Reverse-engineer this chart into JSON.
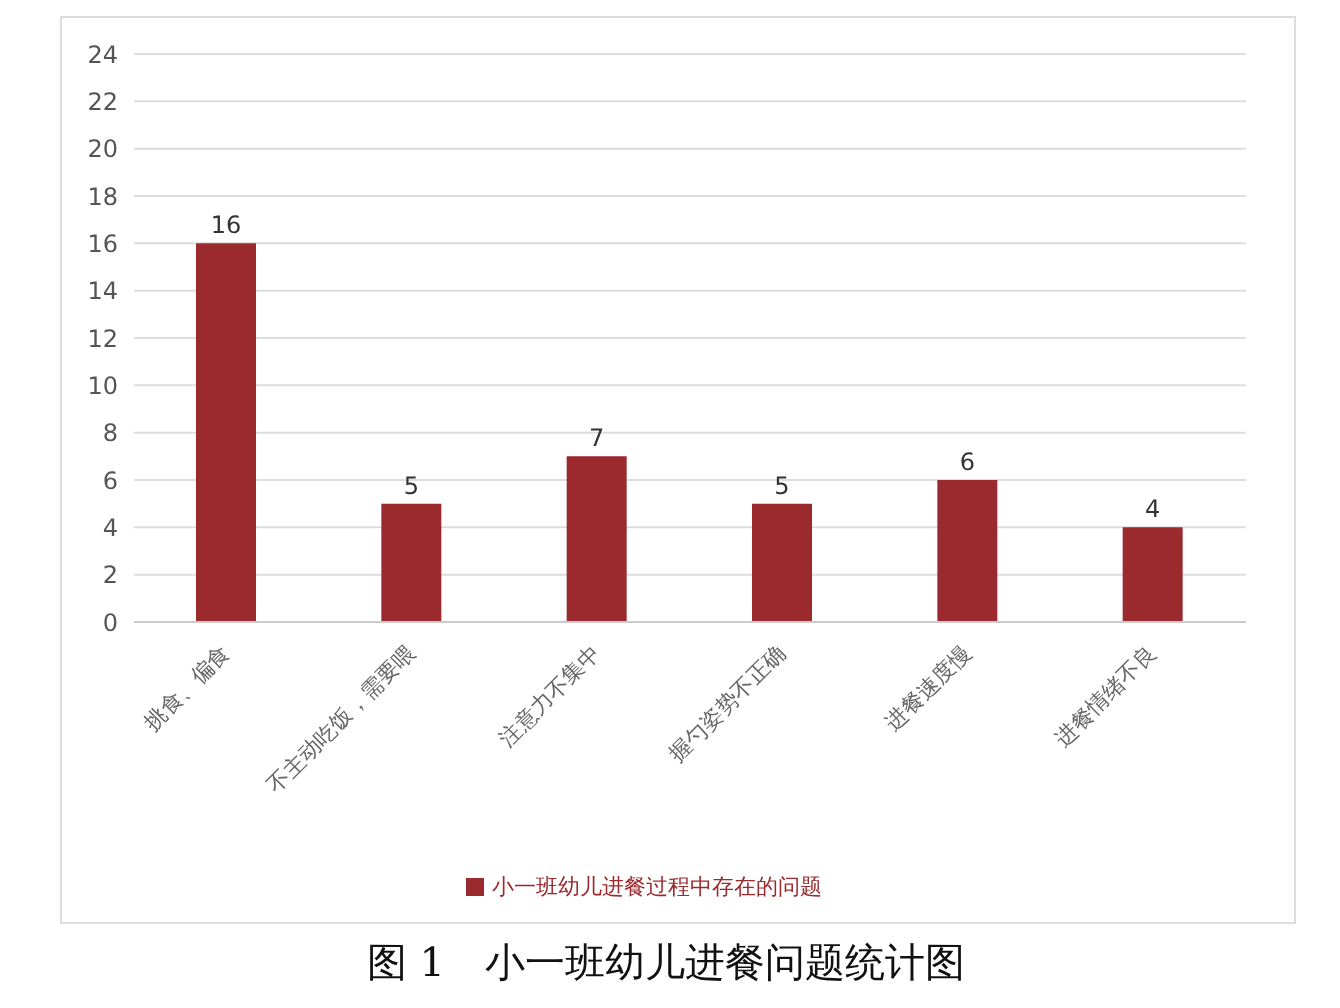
{
  "chart_data": {
    "type": "bar",
    "title": "图 1　小一班幼儿进餐问题统计图",
    "categories": [
      "挑食、偏食",
      "不主动吃饭，需要喂",
      "注意力不集中",
      "握勺姿势不正确",
      "进餐速度慢",
      "进餐情绪不良"
    ],
    "series": [
      {
        "name": "小一班幼儿进餐过程中存在的问题",
        "color": "#9b2a2e",
        "values": [
          16,
          5,
          7,
          5,
          6,
          4
        ]
      }
    ],
    "ylim": [
      0,
      24
    ],
    "yticks": [
      0,
      2,
      4,
      6,
      8,
      10,
      12,
      14,
      16,
      18,
      20,
      22,
      24
    ],
    "grid": "y",
    "legend": "bottom",
    "data_labels": true
  }
}
